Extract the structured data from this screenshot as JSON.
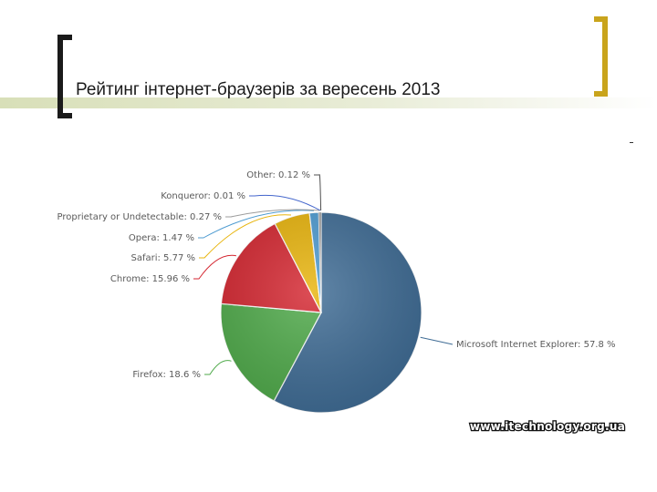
{
  "slide": {
    "title": "Рейтинг інтернет-браузерів за вересень 2013",
    "watermark": "www.itechnology.org.ua",
    "accent_color": "#c9a41c"
  },
  "chart_data": {
    "type": "pie",
    "title": "",
    "unit": "%",
    "slices": [
      {
        "name": "Microsoft Internet Explorer",
        "value": 57.8,
        "label": "Microsoft Internet Explorer: 57.8 %",
        "color": "#3f6c95"
      },
      {
        "name": "Firefox",
        "value": 18.6,
        "label": "Firefox: 18.6 %",
        "color": "#4faa4a"
      },
      {
        "name": "Chrome",
        "value": 15.96,
        "label": "Chrome: 15.96 %",
        "color": "#d42630"
      },
      {
        "name": "Safari",
        "value": 5.77,
        "label": "Safari: 5.77 %",
        "color": "#e8b40c"
      },
      {
        "name": "Opera",
        "value": 1.47,
        "label": "Opera: 1.47 %",
        "color": "#4d9bd1"
      },
      {
        "name": "Proprietary or Undetectable",
        "value": 0.27,
        "label": "Proprietary or Undetectable: 0.27 %",
        "color": "#9c9c9c"
      },
      {
        "name": "Konqueror",
        "value": 0.01,
        "label": "Konqueror: 0.01 %",
        "color": "#4466cc"
      },
      {
        "name": "Other",
        "value": 0.12,
        "label": "Other: 0.12 %",
        "color": "#505050"
      }
    ]
  }
}
